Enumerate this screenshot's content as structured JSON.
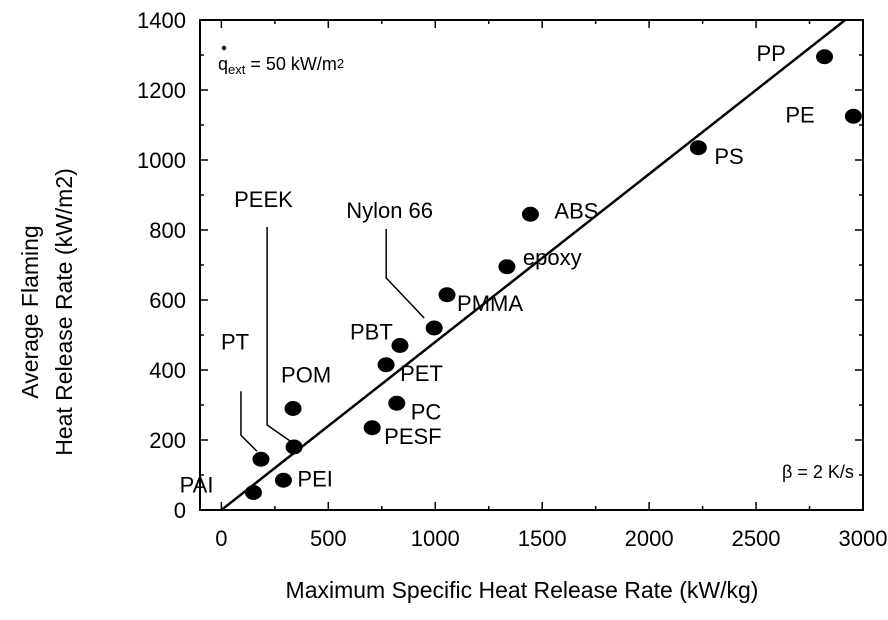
{
  "chart_data": {
    "type": "scatter",
    "title": "",
    "xlabel": "Maximum Specific Heat Release Rate (kW/kg)",
    "ylabel_line1": "Average Flaming",
    "ylabel_line2": "Heat Release Rate (kW/m2)",
    "xlim": [
      -100,
      3000
    ],
    "ylim": [
      0,
      1400
    ],
    "x_ticks": [
      0,
      500,
      1000,
      1500,
      2000,
      2500,
      3000
    ],
    "y_ticks": [
      0,
      200,
      400,
      600,
      800,
      1000,
      1200,
      1400
    ],
    "grid": false,
    "points": [
      {
        "label": "PAI",
        "x": 150,
        "y": 50
      },
      {
        "label": "PT",
        "x": 185,
        "y": 145
      },
      {
        "label": "PEI",
        "x": 290,
        "y": 85
      },
      {
        "label": "PEEK",
        "x": 340,
        "y": 180
      },
      {
        "label": "POM",
        "x": 335,
        "y": 290
      },
      {
        "label": "PESF",
        "x": 705,
        "y": 235
      },
      {
        "label": "PET",
        "x": 770,
        "y": 415
      },
      {
        "label": "PC",
        "x": 820,
        "y": 305
      },
      {
        "label": "PBT",
        "x": 835,
        "y": 470
      },
      {
        "label": "Nylon 66",
        "x": 995,
        "y": 520
      },
      {
        "label": "PMMA",
        "x": 1055,
        "y": 615
      },
      {
        "label": "epoxy",
        "x": 1335,
        "y": 695
      },
      {
        "label": "ABS",
        "x": 1445,
        "y": 845
      },
      {
        "label": "PS",
        "x": 2230,
        "y": 1035
      },
      {
        "label": "PP",
        "x": 2820,
        "y": 1295
      },
      {
        "label": "PE",
        "x": 2955,
        "y": 1125
      }
    ],
    "fit_line": {
      "x": [
        0,
        3000
      ],
      "y": [
        0,
        1440
      ]
    },
    "annotations": {
      "qext_q": "q",
      "qext_sub": "ext",
      "qext_rest": " = 50 kW/m",
      "qext_unit_exp": "2",
      "beta": "β = 2 K/s"
    }
  }
}
